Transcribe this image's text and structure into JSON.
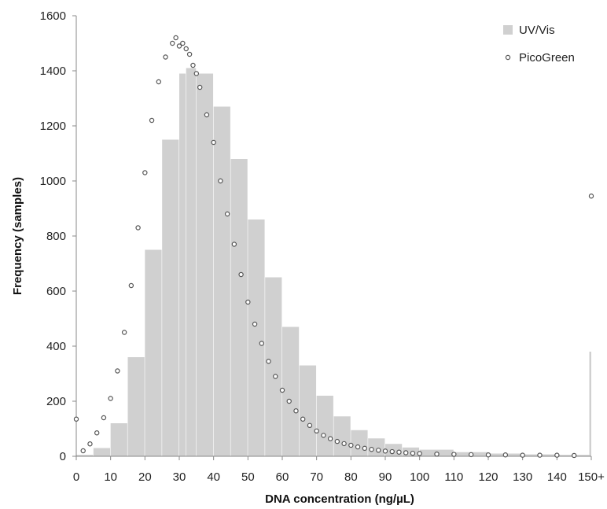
{
  "chart_data": {
    "type": "bar",
    "title": "",
    "xlabel": "DNA concentration (ng/µL)",
    "ylabel": "Frequency (samples)",
    "xlim": [
      0,
      150
    ],
    "ylim": [
      0,
      1600
    ],
    "xticks": [
      0,
      10,
      20,
      30,
      40,
      50,
      60,
      70,
      80,
      90,
      100,
      110,
      120,
      130,
      140,
      150
    ],
    "xtick_labels": [
      "0",
      "10",
      "20",
      "30",
      "40",
      "50",
      "60",
      "70",
      "80",
      "90",
      "100",
      "110",
      "120",
      "130",
      "140",
      "150+"
    ],
    "yticks": [
      0,
      200,
      400,
      600,
      800,
      1000,
      1200,
      1400,
      1600
    ],
    "ytick_labels": [
      "0",
      "200",
      "400",
      "600",
      "800",
      "1000",
      "1200",
      "1400",
      "1600"
    ],
    "grid": false,
    "legend_position": "top-right",
    "series": [
      {
        "name": "UV/Vis",
        "type": "bar",
        "color": "#d0d0d0",
        "x": [
          0,
          5,
          10,
          15,
          20,
          25,
          30,
          32,
          35,
          40,
          45,
          50,
          55,
          60,
          65,
          70,
          75,
          80,
          85,
          90,
          95,
          100,
          110,
          120,
          130,
          140,
          150
        ],
        "values": [
          5,
          30,
          120,
          360,
          750,
          1150,
          1390,
          1410,
          1390,
          1270,
          1080,
          860,
          650,
          470,
          330,
          220,
          145,
          95,
          65,
          45,
          32,
          24,
          15,
          10,
          7,
          5,
          380
        ]
      },
      {
        "name": "PicoGreen",
        "type": "scatter",
        "color": "#555555",
        "x": [
          0,
          2,
          4,
          6,
          8,
          10,
          12,
          14,
          16,
          18,
          20,
          22,
          24,
          26,
          28,
          29,
          30,
          31,
          32,
          33,
          34,
          35,
          36,
          38,
          40,
          42,
          44,
          46,
          48,
          50,
          52,
          54,
          56,
          58,
          60,
          62,
          64,
          66,
          68,
          70,
          72,
          74,
          76,
          78,
          80,
          82,
          84,
          86,
          88,
          90,
          92,
          94,
          96,
          98,
          100,
          105,
          110,
          115,
          120,
          125,
          130,
          135,
          140,
          145,
          150
        ],
        "values": [
          135,
          20,
          45,
          85,
          140,
          210,
          310,
          450,
          620,
          830,
          1030,
          1220,
          1360,
          1450,
          1500,
          1520,
          1490,
          1500,
          1480,
          1460,
          1420,
          1390,
          1340,
          1240,
          1140,
          1000,
          880,
          770,
          660,
          560,
          480,
          410,
          345,
          290,
          240,
          200,
          165,
          135,
          112,
          92,
          76,
          64,
          54,
          46,
          40,
          34,
          29,
          25,
          22,
          19,
          17,
          15,
          13,
          11,
          10,
          8,
          7,
          6,
          5,
          5,
          4,
          4,
          4,
          3,
          945
        ]
      }
    ]
  }
}
